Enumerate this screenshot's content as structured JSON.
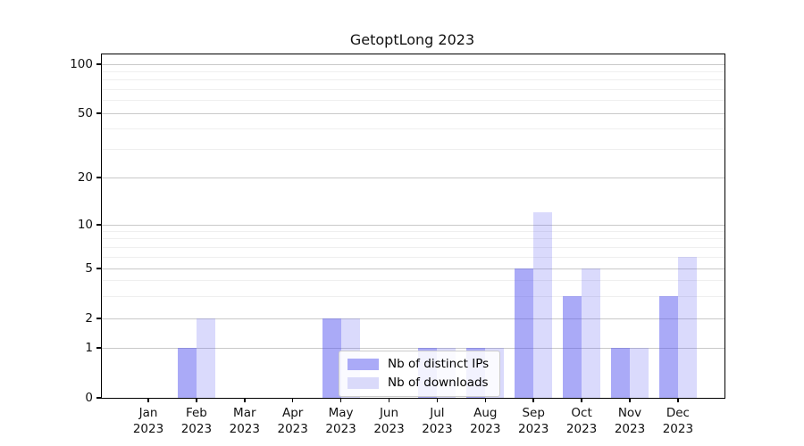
{
  "figure": {
    "title": "GetoptLong 2023"
  },
  "chart_data": {
    "type": "bar",
    "title": "GetoptLong 2023",
    "x_categories": [
      "Jan",
      "Feb",
      "Mar",
      "Apr",
      "May",
      "Jun",
      "Jul",
      "Aug",
      "Sep",
      "Oct",
      "Nov",
      "Dec"
    ],
    "x_year": "2023",
    "series": [
      {
        "name": "Nb of distinct IPs",
        "values": [
          0,
          1,
          0,
          0,
          2,
          0,
          1,
          1,
          5,
          3,
          1,
          3
        ],
        "bar_color": "rgba(85,85,240,0.50)",
        "legend_color": "#aaaaf7"
      },
      {
        "name": "Nb of downloads",
        "values": [
          0,
          2,
          0,
          0,
          2,
          0,
          1,
          1,
          12,
          5,
          1,
          6
        ],
        "bar_color": "rgba(85,85,240,0.22)",
        "legend_color": "#dadafa"
      }
    ],
    "y_axis": {
      "scale": "log-above-1",
      "major_ticks": [
        0,
        1,
        2,
        5,
        10,
        20,
        50,
        100
      ],
      "minor_ticks": [
        3,
        4,
        6,
        7,
        8,
        9,
        30,
        40,
        60,
        70,
        80,
        90
      ],
      "ylim": [
        0,
        115
      ]
    },
    "x_axis": {
      "ticks_per_month": true
    },
    "grid": true,
    "legend_position": "lower-center-inside"
  },
  "colors": {
    "major_grid": "#c9c9c9",
    "minor_grid": "#efefef",
    "axis": "#000000",
    "background": "#ffffff"
  }
}
